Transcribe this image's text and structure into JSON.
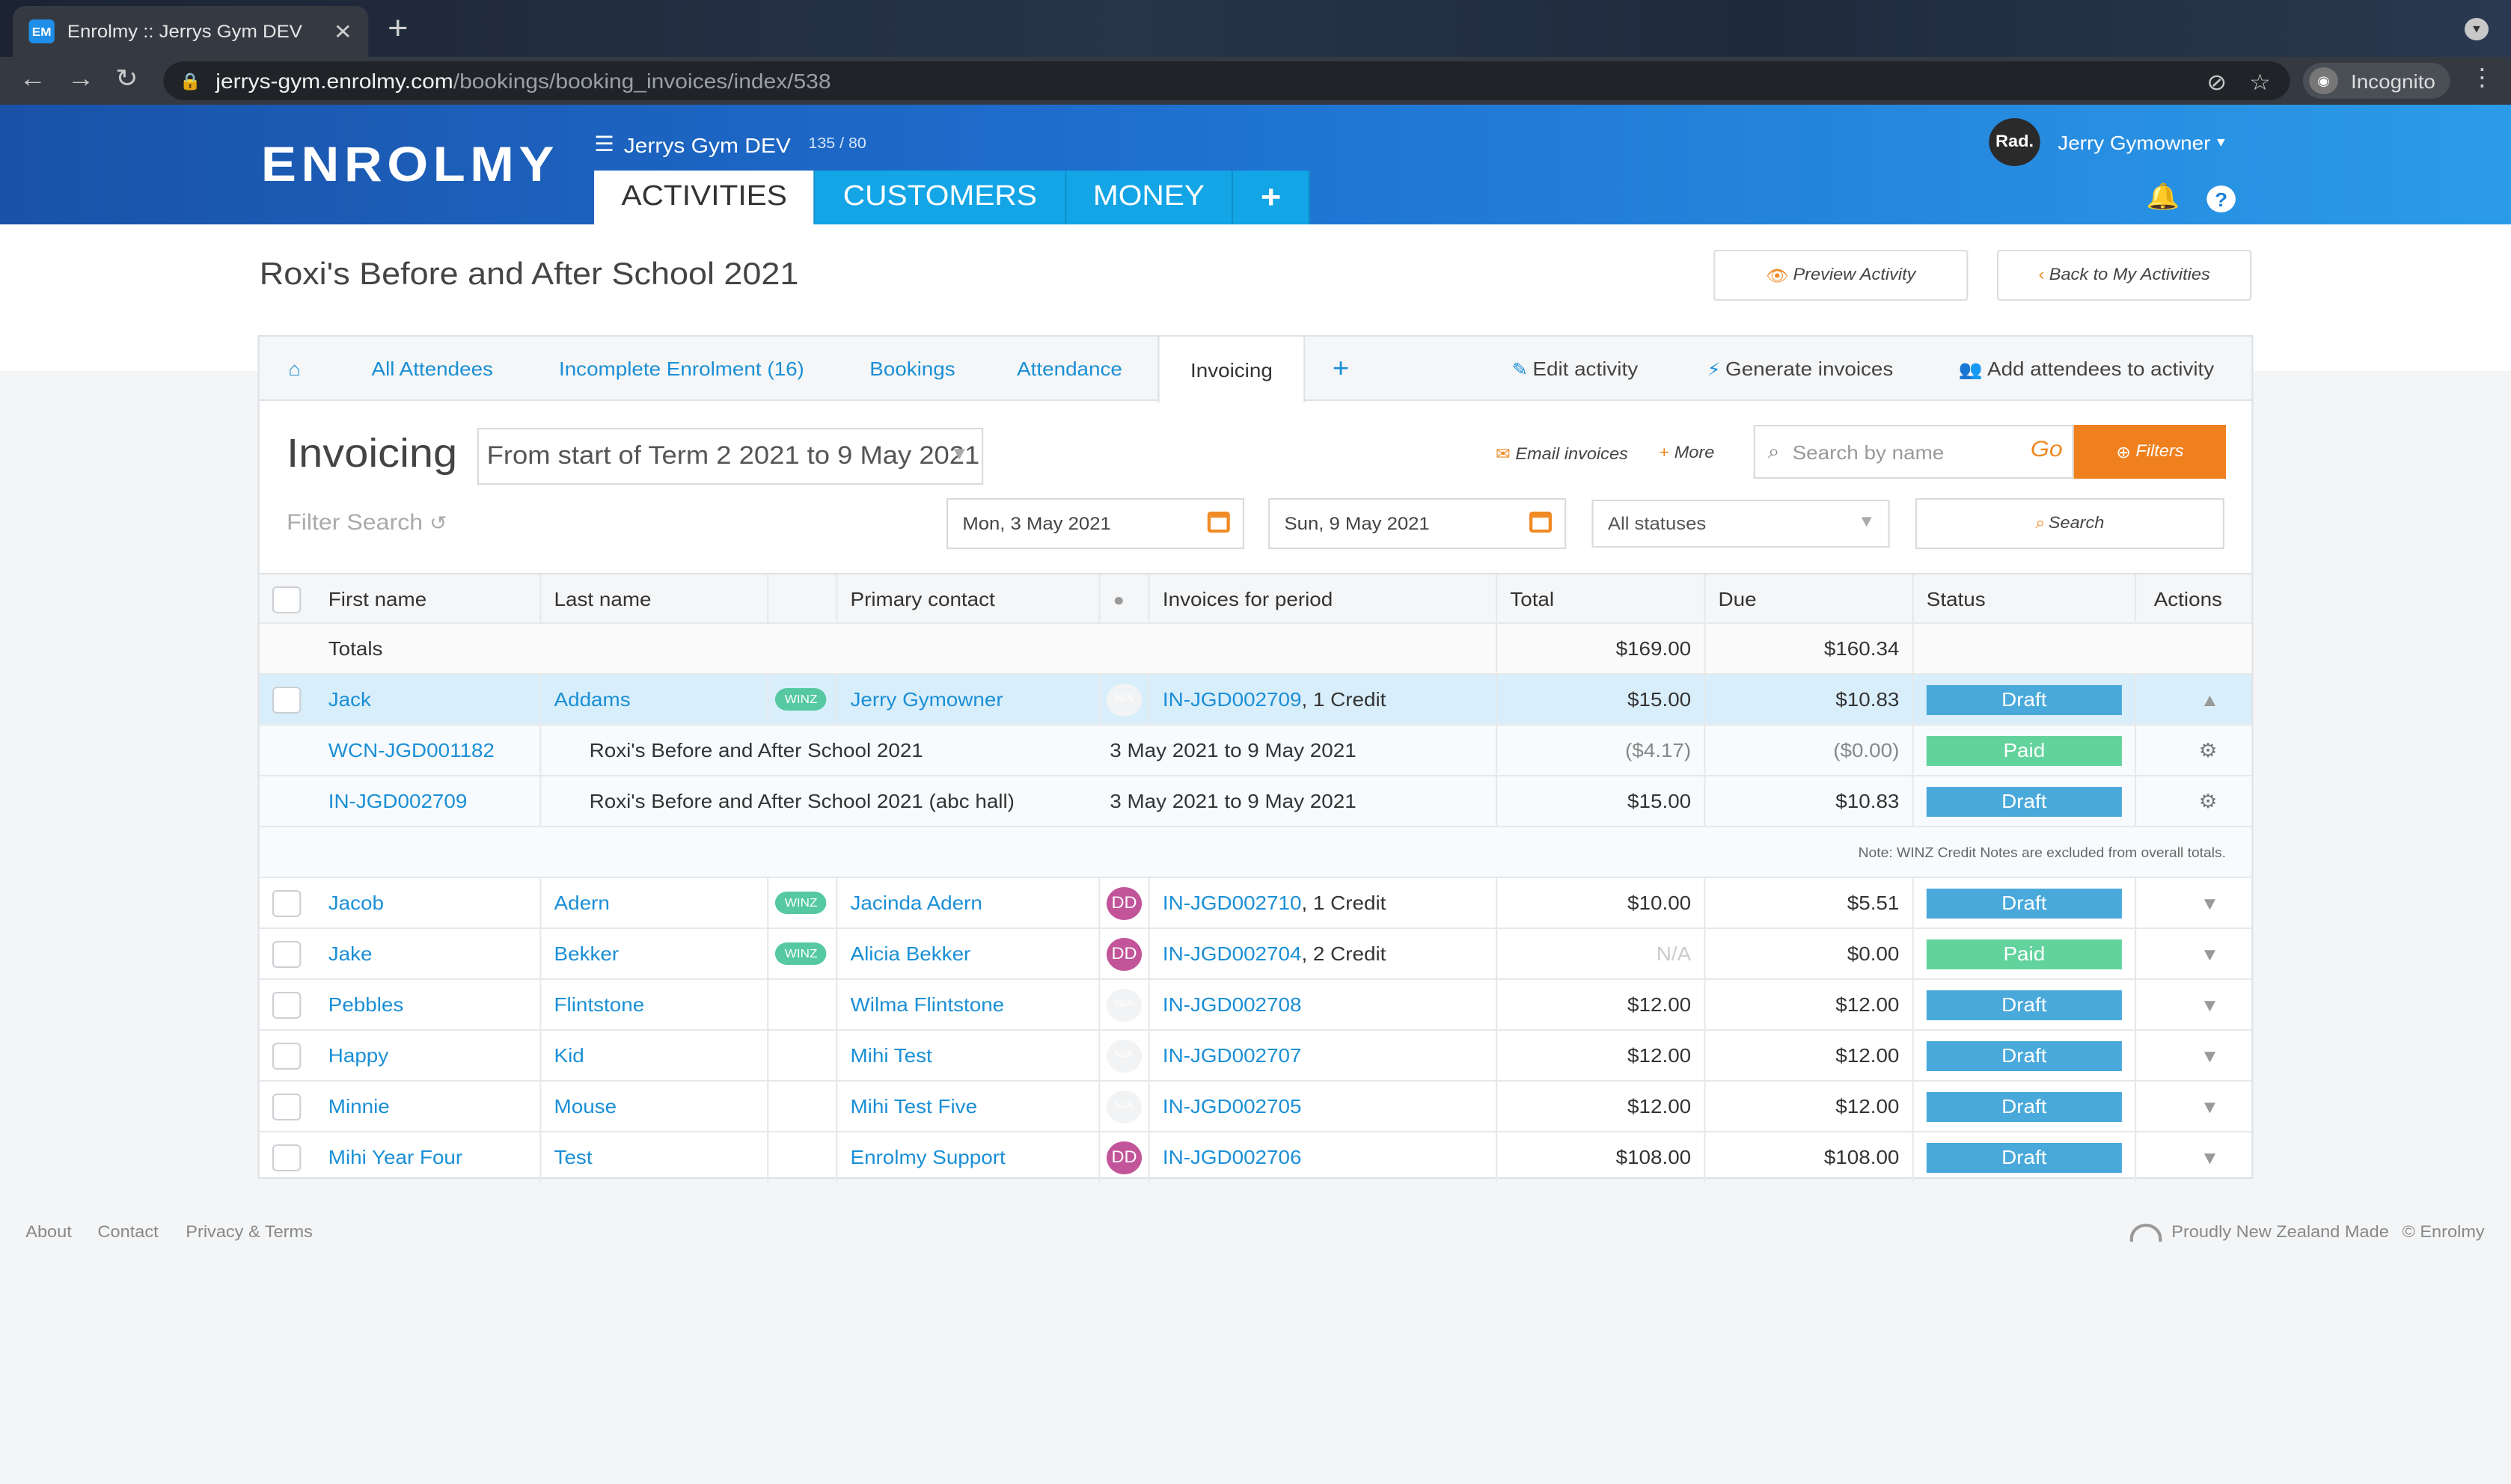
{
  "browser": {
    "tab_title": "Enrolmy :: Jerrys Gym DEV",
    "favicon": "EM",
    "url_host": "jerrys-gym.enrolmy.com",
    "url_path": "/bookings/booking_invoices/index/538",
    "incognito_label": "Incognito"
  },
  "header": {
    "logo": "ENROLMY",
    "org_name": "Jerrys Gym DEV",
    "org_count": "135 / 80",
    "tabs": [
      {
        "label": "ACTIVITIES"
      },
      {
        "label": "CUSTOMERS"
      },
      {
        "label": "MONEY"
      },
      {
        "label": "+"
      }
    ],
    "user_initials": "Rad.",
    "user_name": "Jerry Gymowner"
  },
  "page": {
    "title": "Roxi's Before and After School 2021",
    "preview_button": "Preview Activity",
    "back_button": "Back to My Activities"
  },
  "subtabs": {
    "all_attendees": "All Attendees",
    "incomplete": "Incomplete Enrolment (16)",
    "bookings": "Bookings",
    "attendance": "Attendance",
    "invoicing": "Invoicing",
    "plus": "+",
    "edit": "Edit activity",
    "generate": "Generate invoices",
    "add": "Add attendees to activity"
  },
  "invoicing": {
    "title": "Invoicing",
    "period": "From start of Term 2 2021 to 9 May 2021",
    "email": "Email invoices",
    "more": "More",
    "search_placeholder": "Search by name",
    "go": "Go",
    "filters": "Filters",
    "filter_search": "Filter Search",
    "date_from": "Mon, 3 May 2021",
    "date_to": "Sun, 9 May 2021",
    "status_select": "All statuses",
    "search_button": "Search"
  },
  "table": {
    "headers": {
      "first": "First name",
      "last": "Last name",
      "contact": "Primary contact",
      "invoices": "Invoices for period",
      "total": "Total",
      "due": "Due",
      "status": "Status",
      "actions": "Actions"
    },
    "totals": {
      "label": "Totals",
      "total": "$169.00",
      "due": "$160.34"
    },
    "selected": {
      "first": "Jack",
      "last": "Addams",
      "winz": "WINZ",
      "contact": "Jerry Gymowner",
      "avatar": "N/A",
      "invoice": "IN-JGD002709",
      "invoice_suffix": ", 1 Credit",
      "total": "$15.00",
      "due": "$10.83",
      "status": "Draft"
    },
    "subrows": [
      {
        "number": "WCN-JGD001182",
        "activity": "Roxi's Before and After School 2021",
        "period": "3 May 2021 to 9 May 2021",
        "total": "($4.17)",
        "due": "($0.00)",
        "status": "Paid"
      },
      {
        "number": "IN-JGD002709",
        "activity": "Roxi's Before and After School 2021 (abc hall)",
        "period": "3 May 2021 to 9 May 2021",
        "total": "$15.00",
        "due": "$10.83",
        "status": "Draft"
      }
    ],
    "note": "Note: WINZ Credit Notes are excluded from overall totals.",
    "rows": [
      {
        "first": "Jacob",
        "last": "Adern",
        "winz": "WINZ",
        "contact": "Jacinda Adern",
        "avatar": "DD",
        "invoice": "IN-JGD002710",
        "invoice_suffix": ", 1 Credit",
        "total": "$10.00",
        "due": "$5.51",
        "status": "Draft"
      },
      {
        "first": "Jake",
        "last": "Bekker",
        "winz": "WINZ",
        "contact": "Alicia Bekker",
        "avatar": "DD",
        "invoice": "IN-JGD002704",
        "invoice_suffix": ", 2 Credit",
        "total": "N/A",
        "due": "$0.00",
        "status": "Paid"
      },
      {
        "first": "Pebbles",
        "last": "Flintstone",
        "winz": "",
        "contact": "Wilma Flintstone",
        "avatar": "N/A",
        "invoice": "IN-JGD002708",
        "invoice_suffix": "",
        "total": "$12.00",
        "due": "$12.00",
        "status": "Draft"
      },
      {
        "first": "Happy",
        "last": "Kid",
        "winz": "",
        "contact": "Mihi Test",
        "avatar": "N/A",
        "invoice": "IN-JGD002707",
        "invoice_suffix": "",
        "total": "$12.00",
        "due": "$12.00",
        "status": "Draft"
      },
      {
        "first": "Minnie",
        "last": "Mouse",
        "winz": "",
        "contact": "Mihi Test Five",
        "avatar": "N/A",
        "invoice": "IN-JGD002705",
        "invoice_suffix": "",
        "total": "$12.00",
        "due": "$12.00",
        "status": "Draft"
      },
      {
        "first": "Mihi Year Four",
        "last": "Test",
        "winz": "",
        "contact": "Enrolmy Support",
        "avatar": "DD",
        "invoice": "IN-JGD002706",
        "invoice_suffix": "",
        "total": "$108.00",
        "due": "$108.00",
        "status": "Draft"
      }
    ]
  },
  "footer": {
    "about": "About",
    "contact": "Contact",
    "privacy": "Privacy & Terms",
    "nz": "Proudly New Zealand Made",
    "copyright": "© Enrolmy"
  },
  "colors": {
    "accent": "#1a8fd6",
    "orange": "#f07f1e",
    "draft": "#4aa9db",
    "paid": "#62d39c"
  }
}
